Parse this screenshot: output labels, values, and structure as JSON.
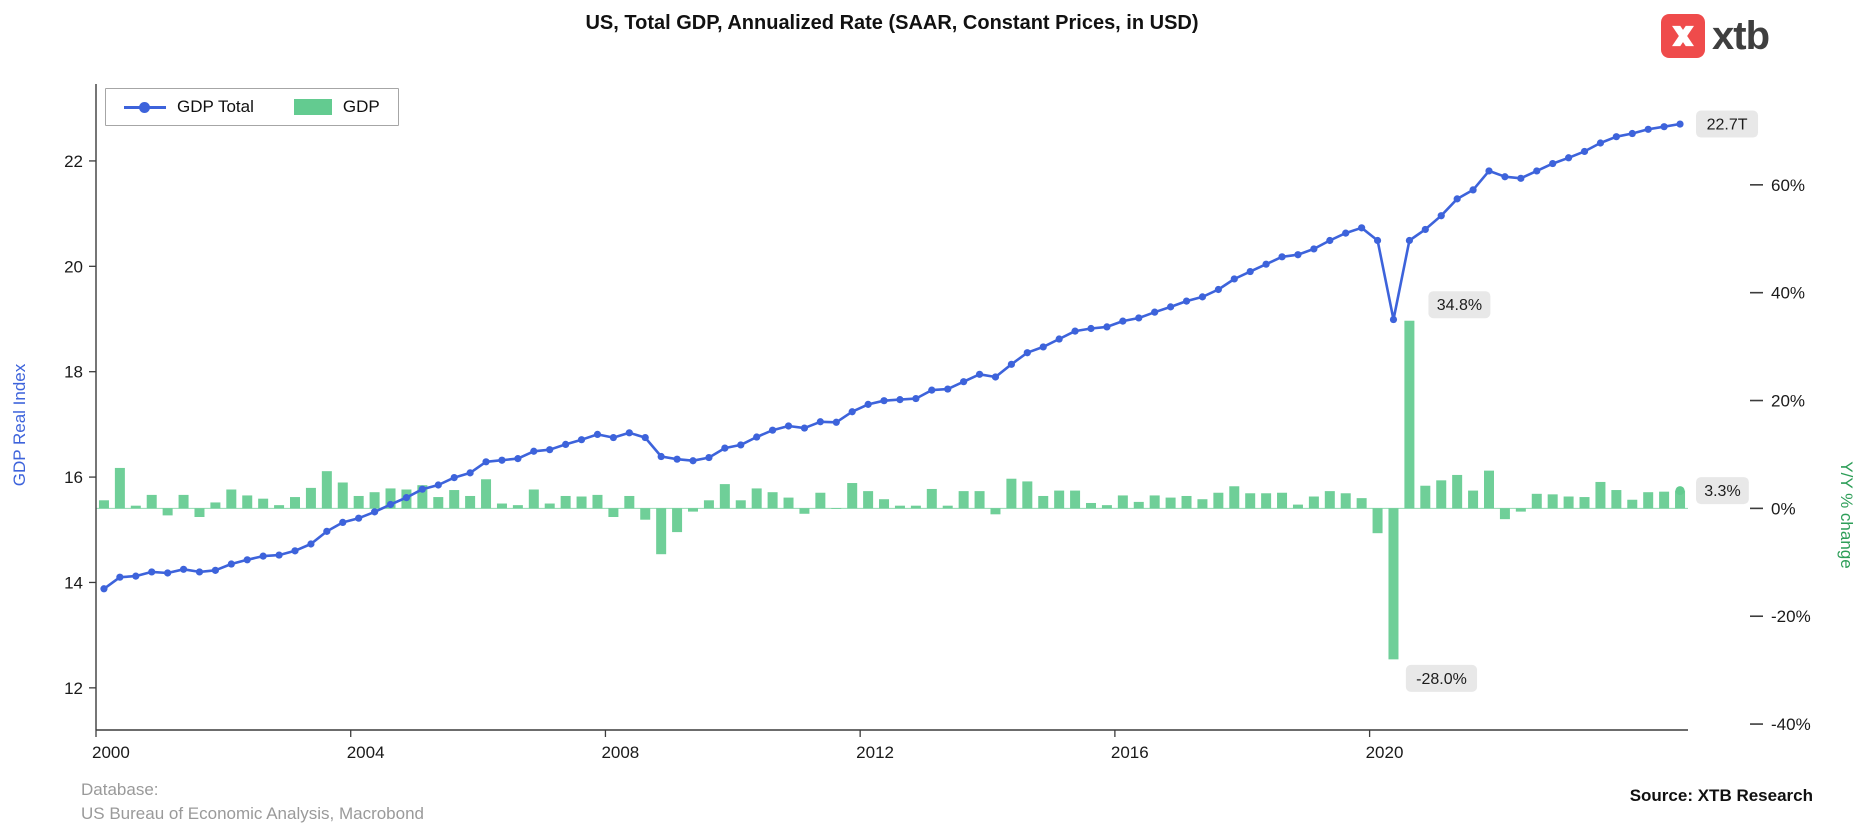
{
  "title": "US, Total GDP, Annualized Rate (SAAR, Constant Prices, in USD)",
  "logo": {
    "brand": "xtb"
  },
  "colors": {
    "brand_red": "#EF4B4B",
    "line_blue": "#3D63DB",
    "bar_green": "#63CB90",
    "annotation_bg": "#E8E8E8",
    "axis_text": "#1a1a1a",
    "spine": "#3c3c3c"
  },
  "legend": {
    "items": [
      {
        "label": "GDP Total",
        "type": "line"
      },
      {
        "label": "GDP",
        "type": "bar"
      }
    ]
  },
  "footer": {
    "database_label": "Database:",
    "database_value": "US Bureau of Economic Analysis, Macrobond",
    "source": "Source: XTB Research"
  },
  "chart_data": {
    "type": "line+bar",
    "title": "US, Total GDP, Annualized Rate (SAAR, Constant Prices, in USD)",
    "x_start_year": 2000,
    "frequency": "quarterly",
    "x_axis": {
      "ticks": [
        2000,
        2004,
        2008,
        2012,
        2016,
        2020
      ]
    },
    "left_axis": {
      "label": "GDP Real Index",
      "title_color": "#3D63DB",
      "ticks": [
        12,
        14,
        16,
        18,
        20,
        22
      ],
      "range": [
        11.2,
        23.46
      ]
    },
    "right_axis": {
      "label": "Y/Y % change",
      "title_color": "#2D9E58",
      "ticks": [
        -40,
        -20,
        0,
        20,
        40,
        60
      ],
      "tick_labels": [
        "-40%",
        "-20%",
        "0%",
        "20%",
        "40%",
        "60%"
      ],
      "range": [
        -41.1,
        78.7
      ]
    },
    "series": [
      {
        "name": "GDP Total",
        "type": "line",
        "axis": "left",
        "color": "#3D63DB",
        "values": [
          13.88,
          14.1,
          14.12,
          14.2,
          14.18,
          14.25,
          14.2,
          14.23,
          14.35,
          14.43,
          14.5,
          14.52,
          14.6,
          14.73,
          14.97,
          15.14,
          15.22,
          15.34,
          15.48,
          15.61,
          15.77,
          15.85,
          15.99,
          16.08,
          16.29,
          16.32,
          16.35,
          16.49,
          16.52,
          16.62,
          16.71,
          16.81,
          16.75,
          16.84,
          16.75,
          16.39,
          16.34,
          16.31,
          16.37,
          16.55,
          16.61,
          16.76,
          16.89,
          16.97,
          16.93,
          17.05,
          17.04,
          17.24,
          17.38,
          17.45,
          17.47,
          17.49,
          17.65,
          17.67,
          17.81,
          17.95,
          17.9,
          18.14,
          18.36,
          18.47,
          18.62,
          18.77,
          18.82,
          18.85,
          18.96,
          19.02,
          19.13,
          19.23,
          19.34,
          19.42,
          19.56,
          19.76,
          19.9,
          20.04,
          20.18,
          20.22,
          20.33,
          20.49,
          20.63,
          20.73,
          20.49,
          18.99,
          20.49,
          20.7,
          20.96,
          21.28,
          21.45,
          21.81,
          21.7,
          21.67,
          21.81,
          21.95,
          22.06,
          22.18,
          22.34,
          22.46,
          22.52,
          22.6,
          22.65,
          22.7
        ]
      },
      {
        "name": "GDP",
        "type": "bar",
        "axis": "right",
        "color": "#63CB90",
        "values": [
          1.5,
          7.5,
          0.5,
          2.5,
          -1.3,
          2.5,
          -1.6,
          1.1,
          3.5,
          2.4,
          1.8,
          0.6,
          2.1,
          3.8,
          6.9,
          4.8,
          2.3,
          3.0,
          3.7,
          3.5,
          4.3,
          2.1,
          3.4,
          2.3,
          5.4,
          0.9,
          0.6,
          3.5,
          0.9,
          2.3,
          2.2,
          2.5,
          -1.6,
          2.3,
          -2.1,
          -8.5,
          -4.4,
          -0.6,
          1.5,
          4.5,
          1.5,
          3.7,
          3.0,
          2.0,
          -1.0,
          2.9,
          -0.1,
          4.7,
          3.2,
          1.7,
          0.5,
          0.5,
          3.6,
          0.5,
          3.2,
          3.2,
          -1.1,
          5.5,
          5.0,
          2.3,
          3.3,
          3.3,
          1.0,
          0.6,
          2.4,
          1.2,
          2.4,
          2.0,
          2.3,
          1.7,
          2.9,
          4.1,
          2.8,
          2.8,
          2.9,
          0.7,
          2.2,
          3.2,
          2.8,
          1.9,
          -4.6,
          -28.0,
          34.8,
          4.2,
          5.2,
          6.2,
          3.3,
          7.0,
          -2.0,
          -0.6,
          2.7,
          2.6,
          2.2,
          2.1,
          4.9,
          3.4,
          1.6,
          3.0,
          3.1,
          3.3
        ]
      }
    ],
    "annotations": {
      "line_end": {
        "text": "22.7T"
      },
      "bar_peak": {
        "text": "34.8%",
        "index": 82
      },
      "bar_trough": {
        "text": "-28.0%",
        "index": 81
      },
      "bar_latest": {
        "text": "3.3%"
      }
    }
  }
}
